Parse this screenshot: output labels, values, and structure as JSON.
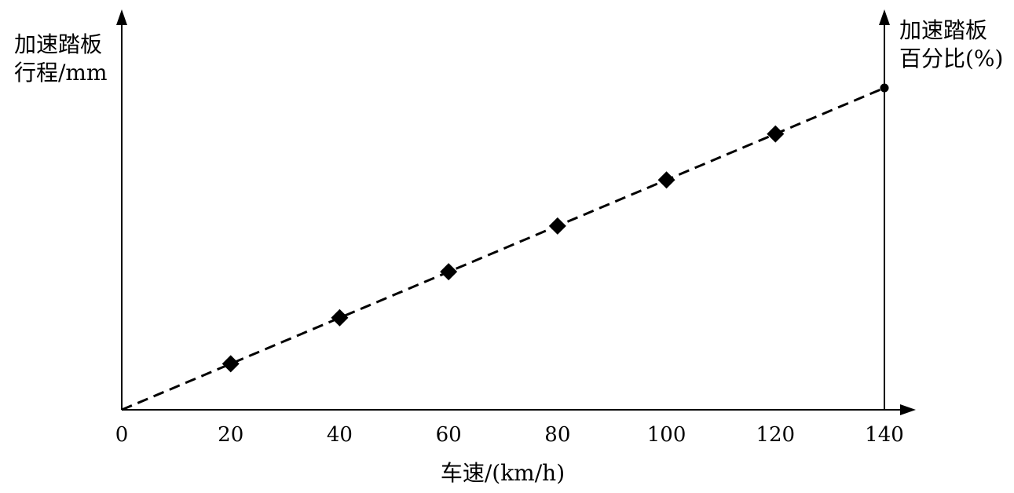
{
  "chart_data": {
    "type": "line",
    "x_axis": {
      "label": "车速/(km/h)",
      "ticks": [
        "0",
        "20",
        "40",
        "60",
        "80",
        "100",
        "120",
        "140"
      ],
      "range": [
        0,
        140
      ]
    },
    "y_axis_left": {
      "label_lines": [
        "加速踏板",
        "行程/mm"
      ]
    },
    "y_axis_right": {
      "label_lines": [
        "加速踏板",
        "百分比(%)"
      ]
    },
    "series": [
      {
        "marker": "diamond",
        "line_style": "dashed",
        "x": [
          20,
          40,
          60,
          80,
          100,
          120
        ],
        "y": [
          14.3,
          28.6,
          42.9,
          57.1,
          71.4,
          85.7
        ]
      }
    ],
    "trend_line": {
      "x": [
        0,
        140
      ],
      "y": [
        0,
        100
      ],
      "style": "dashed"
    },
    "end_point": {
      "x": 140,
      "y": 100,
      "marker": "circle"
    },
    "ylim": [
      0,
      100
    ],
    "grid": false,
    "legend": "none"
  }
}
